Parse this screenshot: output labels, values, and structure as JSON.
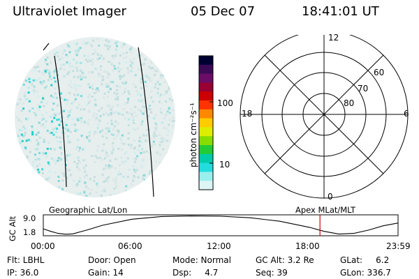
{
  "header": {
    "instrument": "Ultraviolet Imager",
    "date": "05 Dec 07",
    "time": "18:41:01 UT"
  },
  "colorbar": {
    "unit_label": "photon cm⁻²s⁻¹",
    "ticks": [
      "100",
      "10"
    ],
    "colors": [
      "#000033",
      "#3a0a55",
      "#6a0d66",
      "#990033",
      "#cc0000",
      "#ff3300",
      "#ff8800",
      "#ffcc00",
      "#ddee00",
      "#88dd00",
      "#22cc33",
      "#00ccaa",
      "#22dddd",
      "#99eeee",
      "#ddf5f5"
    ]
  },
  "polar_plot": {
    "lat_rings": [
      "60",
      "70",
      "80"
    ],
    "mlt_labels": {
      "top": "12",
      "left": "18",
      "right": "6",
      "bottom": "0"
    }
  },
  "timeline": {
    "left_title": "Geographic Lat/Lon",
    "right_title": "Apex  MLat/MLT",
    "y_axis_label": "GC Alt",
    "y_max_label": "9.0",
    "y_min_label": "1.8",
    "x_labels": [
      "00:00",
      "06:00",
      "12:00",
      "18:00",
      "23:59"
    ],
    "current_time_fraction": 0.78,
    "altitude_curve": {
      "time_hours": [
        0,
        0.5,
        1,
        1.5,
        2,
        3,
        4,
        6,
        8,
        10,
        12,
        14,
        16,
        18,
        19,
        20,
        21,
        22,
        23,
        23.98
      ],
      "gc_alt_re": [
        4.0,
        3.0,
        2.2,
        1.85,
        2.0,
        3.6,
        5.4,
        7.8,
        8.9,
        9.1,
        9.0,
        8.4,
        7.0,
        4.6,
        3.0,
        1.9,
        2.2,
        3.5,
        5.2,
        6.3
      ]
    },
    "marker_color": "#cc0000"
  },
  "footer": {
    "flt": "Flt: LBHL",
    "ip": "IP: 36.0",
    "door": "Door: Open",
    "gain": "Gain: 14",
    "mode": "Mode: Normal",
    "dsp": "Dsp:     4.7",
    "gc_alt": "GC Alt: 3.2 Re",
    "seq": "Seq: 39",
    "glat": "GLat:     6.2",
    "glon": "GLon: 336.7"
  }
}
